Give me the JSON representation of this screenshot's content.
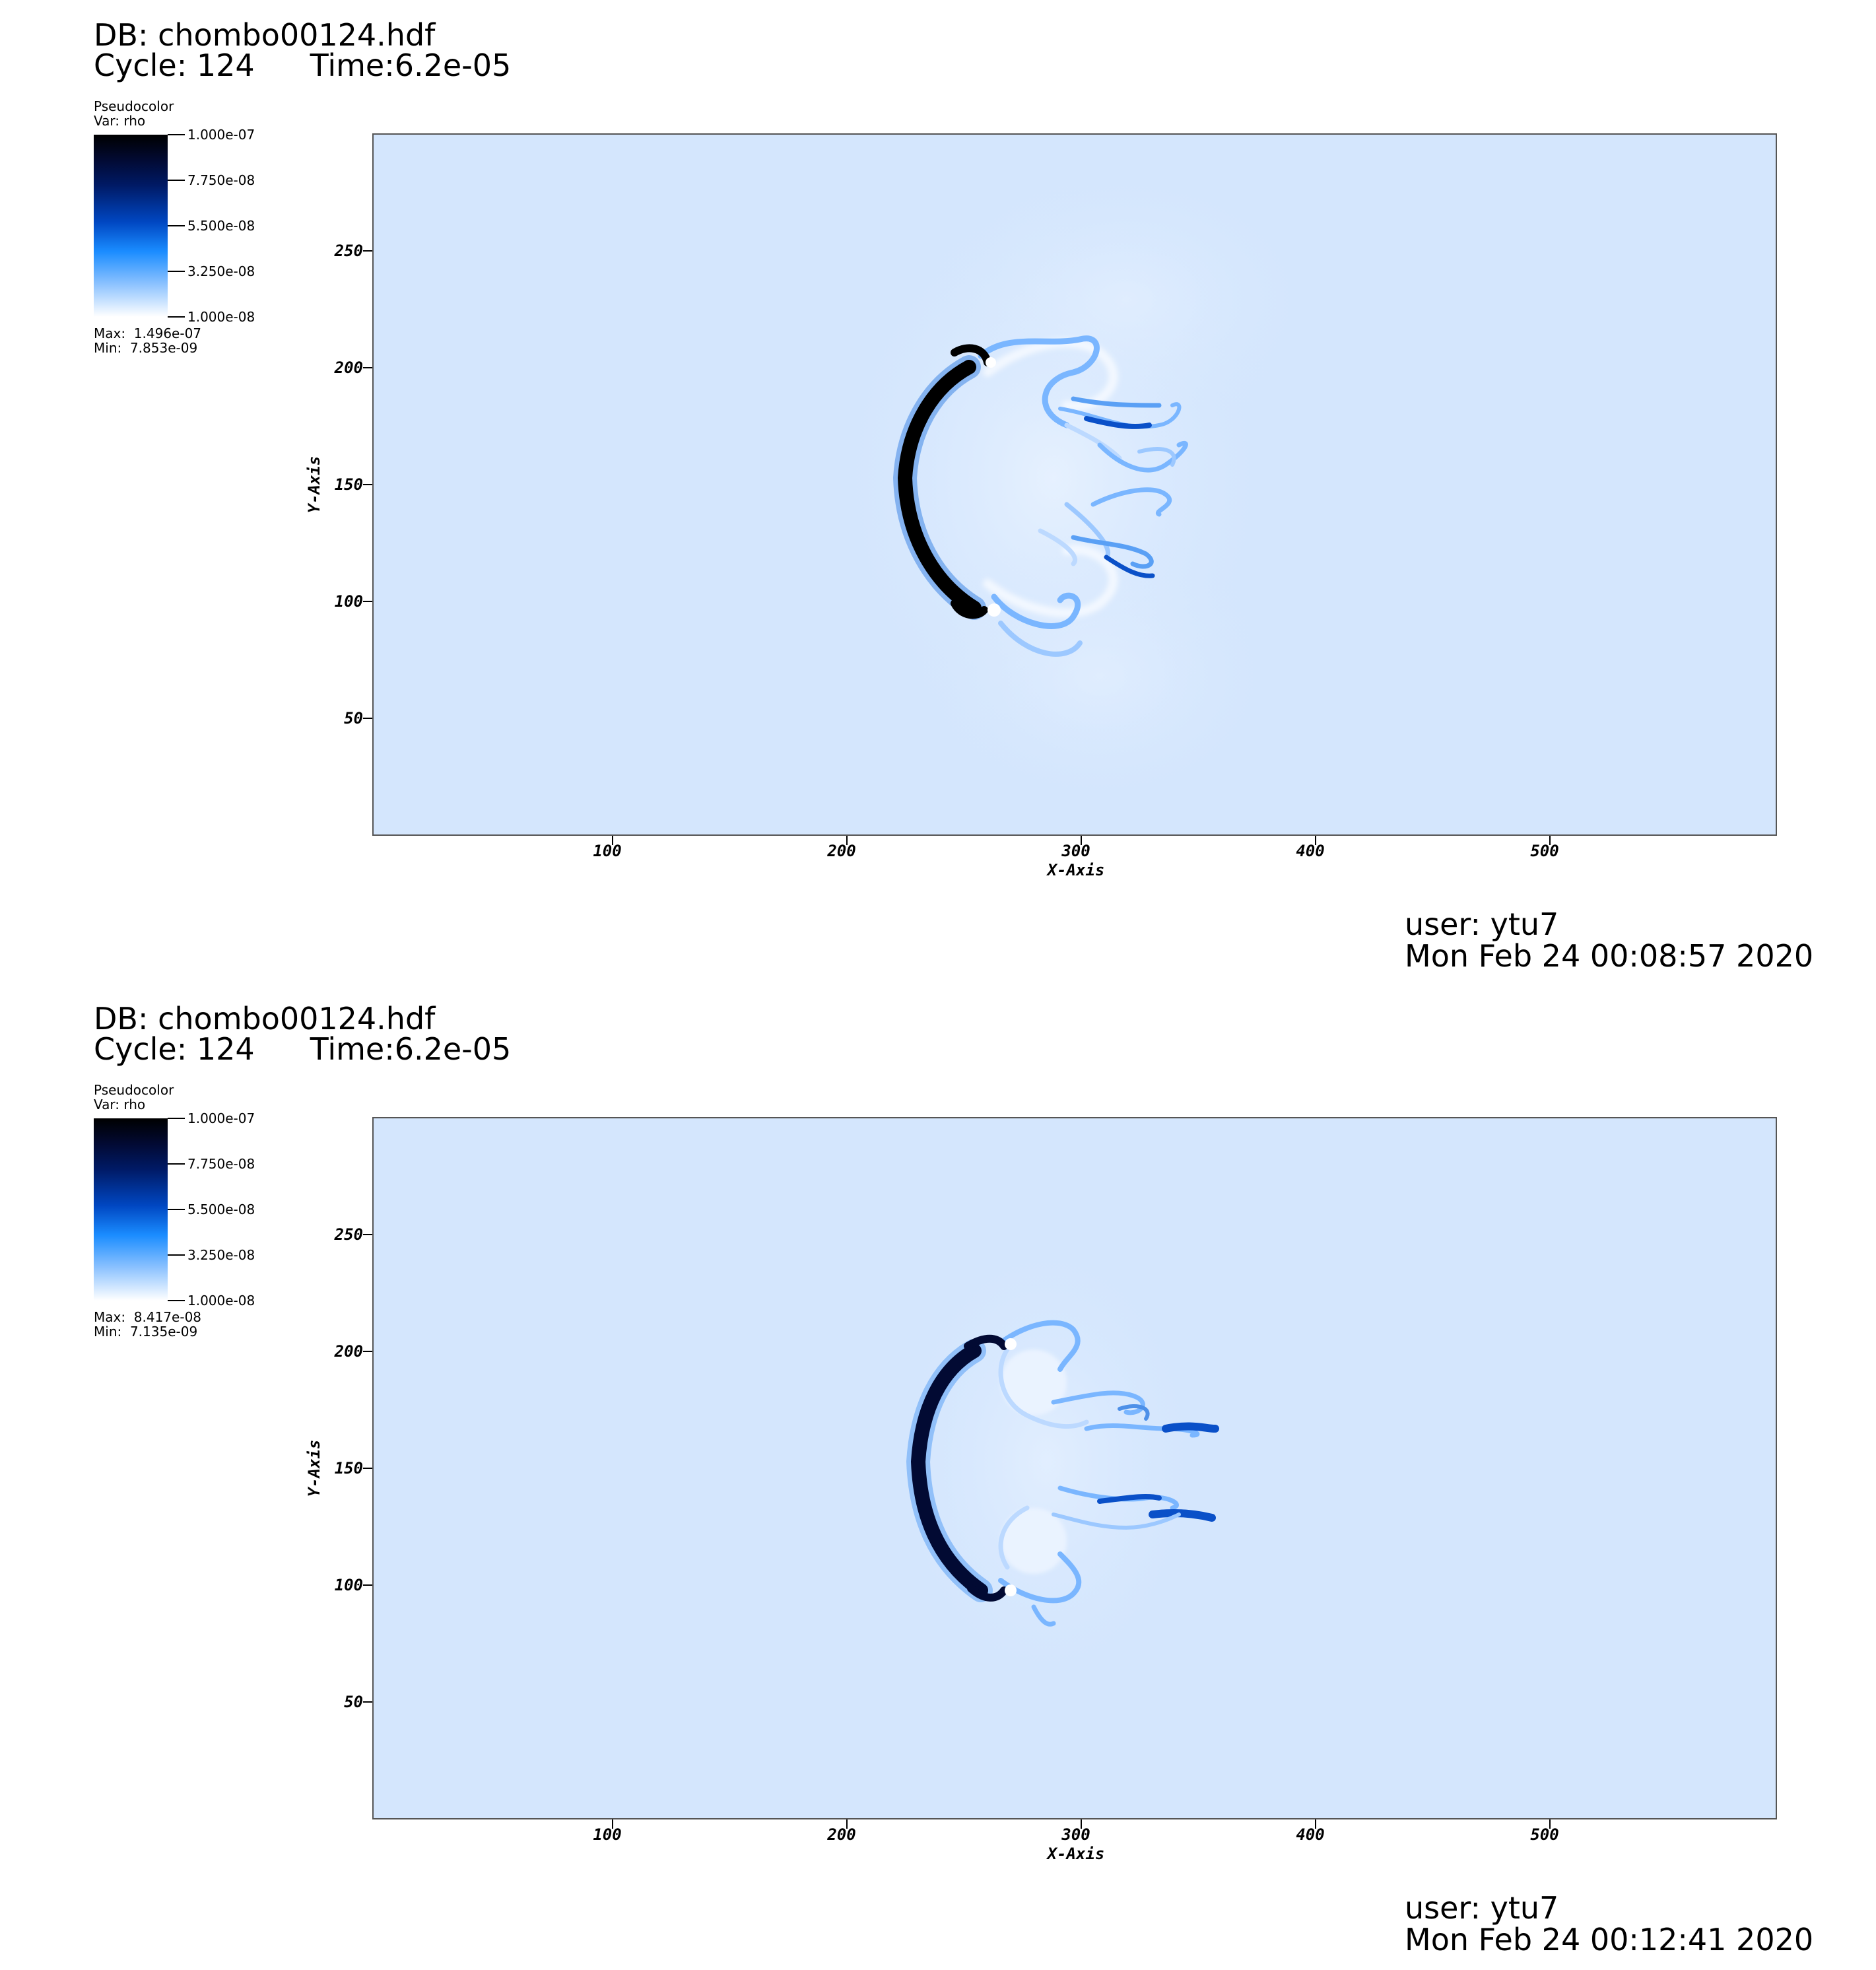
{
  "colors": {
    "plot_background": "#d4e6fd",
    "colormap_max": "#000000",
    "colormap_mid": "#0047c2",
    "colormap_min": "#ffffff"
  },
  "axis": {
    "x_label": "X-Axis",
    "y_label": "Y-Axis",
    "x_ticks": [
      "100",
      "200",
      "300",
      "400",
      "500"
    ],
    "y_ticks": [
      "250",
      "200",
      "150",
      "100",
      "50"
    ],
    "x_range": [
      0,
      600
    ],
    "y_range": [
      0,
      300
    ]
  },
  "panels": [
    {
      "db": "DB: chombo00124.hdf",
      "cycle": "Cycle: 124",
      "time": "Time:6.2e-05",
      "legend_kind": "Pseudocolor",
      "legend_var": "Var: rho",
      "colorbar_ticks": [
        "1.000e-07",
        "7.750e-08",
        "5.500e-08",
        "3.250e-08",
        "1.000e-08"
      ],
      "max": "Max:  1.496e-07",
      "min": "Min:  7.853e-09",
      "user": "user: ytu7",
      "date": "Mon Feb 24 00:08:57 2020"
    },
    {
      "db": "DB: chombo00124.hdf",
      "cycle": "Cycle: 124",
      "time": "Time:6.2e-05",
      "legend_kind": "Pseudocolor",
      "legend_var": "Var: rho",
      "colorbar_ticks": [
        "1.000e-07",
        "7.750e-08",
        "5.500e-08",
        "3.250e-08",
        "1.000e-08"
      ],
      "max": "Max:  8.417e-08",
      "min": "Min:  7.135e-09",
      "user": "user: ytu7",
      "date": "Mon Feb 24 00:12:41 2020"
    }
  ]
}
